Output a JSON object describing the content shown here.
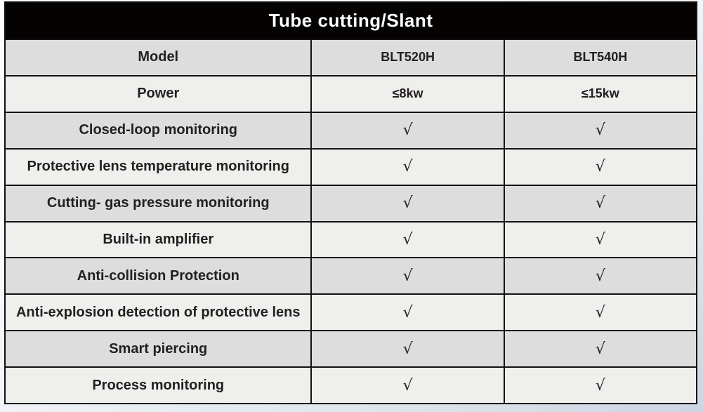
{
  "page": {
    "background_top_color": "#fdfdfe",
    "background_bottom_color": "#ccd6e2"
  },
  "table": {
    "title": "Tube cutting/Slant",
    "colors": {
      "title_bg": "#050202",
      "title_text": "#ffffff",
      "border": "#141212",
      "row_shade_dark": "#dcdddc",
      "row_shade_light": "#efefee",
      "text": "#242020"
    },
    "check_glyph": "√",
    "rows": [
      {
        "label": "Model",
        "blt520h": "BLT520H",
        "blt540h": "BLT540H"
      },
      {
        "label": "Power",
        "blt520h": "≤8kw",
        "blt540h": "≤15kw"
      },
      {
        "label": "Closed-loop monitoring",
        "blt520h": "√",
        "blt540h": "√"
      },
      {
        "label": "Protective lens temperature monitoring",
        "blt520h": "√",
        "blt540h": "√"
      },
      {
        "label": "Cutting- gas pressure monitoring",
        "blt520h": "√",
        "blt540h": "√"
      },
      {
        "label": "Built-in amplifier",
        "blt520h": "√",
        "blt540h": "√"
      },
      {
        "label": "Anti-collision Protection",
        "blt520h": "√",
        "blt540h": "√"
      },
      {
        "label": "Anti-explosion detection of protective lens",
        "blt520h": "√",
        "blt540h": "√"
      },
      {
        "label": "Smart piercing",
        "blt520h": "√",
        "blt540h": "√"
      },
      {
        "label": "Process monitoring",
        "blt520h": "√",
        "blt540h": "√"
      }
    ]
  }
}
